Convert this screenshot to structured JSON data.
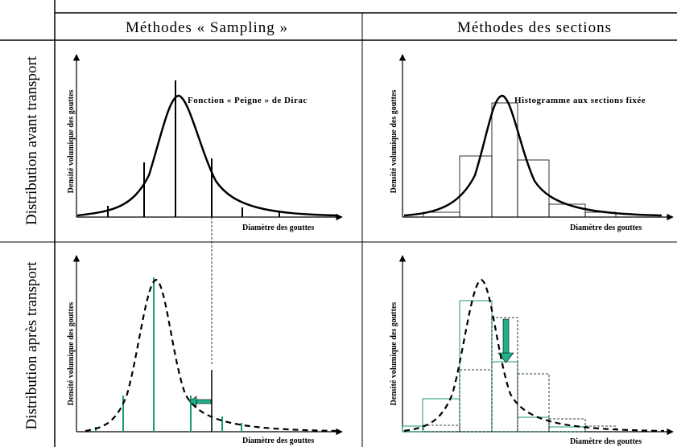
{
  "header": {
    "col_sampling": "Méthodes « Sampling »",
    "col_sections": "Méthodes des sections"
  },
  "rows": {
    "before": "Distribution avant transport",
    "after": "Distribution après transport"
  },
  "axes": {
    "xlabel": "Diamètre des gouttes",
    "ylabel": "Densité volumique des gouttes"
  },
  "annotations": {
    "dirac": "Fonction « Peigne » de Dirac",
    "histogram": "Histogramme aux sections fixée"
  },
  "colors": {
    "curve": "#000000",
    "transported": "#1a9a7a",
    "arrow_fill": "#1fb08a",
    "grid": "#000000"
  }
}
